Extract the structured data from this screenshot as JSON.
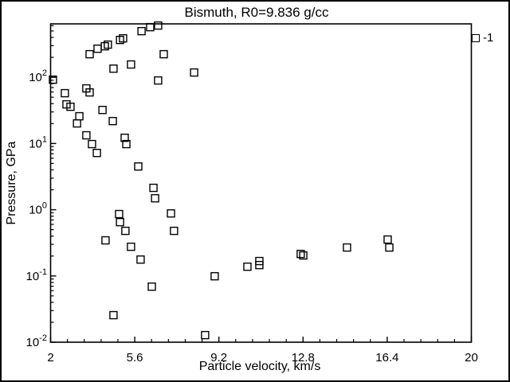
{
  "window": {
    "background": "#ffffff",
    "border_color": "#000000",
    "foreground": "#000000"
  },
  "chart_data": {
    "type": "scatter",
    "title": "Bismuth, R0=9.836 g/cc",
    "xlabel": "Particle velocity, km/s",
    "ylabel": "Pressure, GPa",
    "grid": false,
    "x_axis": {
      "scale": "linear",
      "min": 2,
      "max": 20,
      "major_ticks": [
        2,
        5.6,
        9.2,
        12.8,
        16.4,
        20
      ],
      "major_tick_labels": [
        "2",
        "5.6",
        "9.2",
        "12.8",
        "16.4",
        "20"
      ],
      "minor_tick_step": 0.72
    },
    "y_axis": {
      "scale": "log",
      "min": 0.01,
      "max": 640,
      "major_tick_exponents": [
        2,
        1,
        0,
        -1,
        -2
      ],
      "major_tick_values": [
        100,
        10,
        1,
        0.1,
        0.01
      ],
      "minor_ticks": "mantissas 2-9 each decade"
    },
    "legend": {
      "position": "top-right-outside-plot",
      "entries": [
        {
          "label": "-1",
          "marker": "open-square"
        }
      ]
    },
    "series": [
      {
        "name": "-1",
        "marker": "open-square",
        "marker_color": "#000000",
        "points_x_kms_y_GPa": [
          [
            2.1,
            92
          ],
          [
            2.61,
            57.5
          ],
          [
            2.68,
            39.0
          ],
          [
            2.85,
            35.9
          ],
          [
            3.13,
            20.1
          ],
          [
            3.23,
            25.8
          ],
          [
            3.53,
            67.9
          ],
          [
            3.67,
            59.1
          ],
          [
            3.53,
            13.3
          ],
          [
            3.77,
            9.8
          ],
          [
            3.98,
            7.2
          ],
          [
            3.67,
            223
          ],
          [
            4.01,
            270
          ],
          [
            4.32,
            294
          ],
          [
            4.45,
            311
          ],
          [
            4.97,
            366
          ],
          [
            5.1,
            387
          ],
          [
            5.89,
            497
          ],
          [
            6.26,
            571
          ],
          [
            6.6,
            604
          ],
          [
            4.69,
            135
          ],
          [
            5.44,
            156
          ],
          [
            6.84,
            223
          ],
          [
            8.14,
            118
          ],
          [
            6.6,
            89.5
          ],
          [
            4.22,
            32.1
          ],
          [
            4.66,
            21.8
          ],
          [
            5.17,
            12.2
          ],
          [
            5.24,
            9.8
          ],
          [
            5.75,
            4.5
          ],
          [
            6.4,
            2.14
          ],
          [
            6.47,
            1.49
          ],
          [
            4.93,
            0.86
          ],
          [
            4.97,
            0.65
          ],
          [
            5.2,
            0.48
          ],
          [
            4.35,
            0.345
          ],
          [
            7.15,
            0.88
          ],
          [
            7.28,
            0.48
          ],
          [
            5.44,
            0.276
          ],
          [
            5.85,
            0.177
          ],
          [
            6.33,
            0.069
          ],
          [
            4.69,
            0.0256
          ],
          [
            8.61,
            0.0128
          ],
          [
            9.02,
            0.099
          ],
          [
            10.42,
            0.138
          ],
          [
            10.93,
            0.168
          ],
          [
            10.93,
            0.146
          ],
          [
            12.7,
            0.215
          ],
          [
            12.81,
            0.204
          ],
          [
            14.68,
            0.269
          ],
          [
            16.42,
            0.355
          ],
          [
            16.49,
            0.269
          ]
        ]
      }
    ]
  }
}
